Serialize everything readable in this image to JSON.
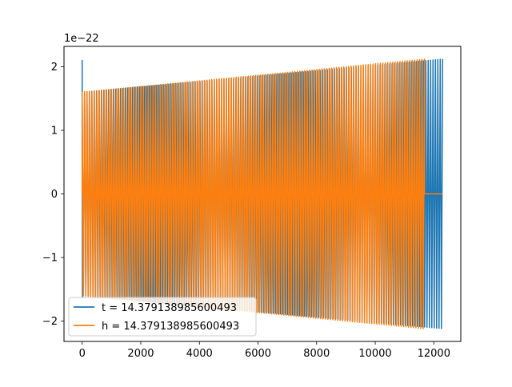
{
  "chart_data": {
    "type": "line",
    "title": "",
    "xlabel": "",
    "ylabel": "",
    "offset_label": "1e−22",
    "xlim": [
      -620,
      12920
    ],
    "ylim": [
      -2.32,
      2.32
    ],
    "xticks": [
      0,
      2000,
      4000,
      6000,
      8000,
      10000,
      12000
    ],
    "xtick_labels": [
      "0",
      "2000",
      "4000",
      "6000",
      "8000",
      "10000",
      "12000"
    ],
    "yticks": [
      -2,
      -1,
      0,
      1,
      2
    ],
    "ytick_labels": [
      "−2",
      "−1",
      "0",
      "1",
      "2"
    ],
    "grid": false,
    "legend_position": "lower-left",
    "series": [
      {
        "name": "t = 14.379138985600493",
        "color": "#1f77b4",
        "x_start": 0,
        "x_end": 12300,
        "envelope_start": 1.6,
        "envelope_end": 2.12,
        "initial_spike": 2.1,
        "cycles": 150
      },
      {
        "name": "h = 14.379138985600493",
        "color": "#ff7f0e",
        "x_start": 0,
        "x_end": 11680,
        "envelope_start": 1.6,
        "envelope_end": 2.12,
        "tail_x_end": 12300,
        "tail_value": 0,
        "cycles": 140
      }
    ]
  }
}
